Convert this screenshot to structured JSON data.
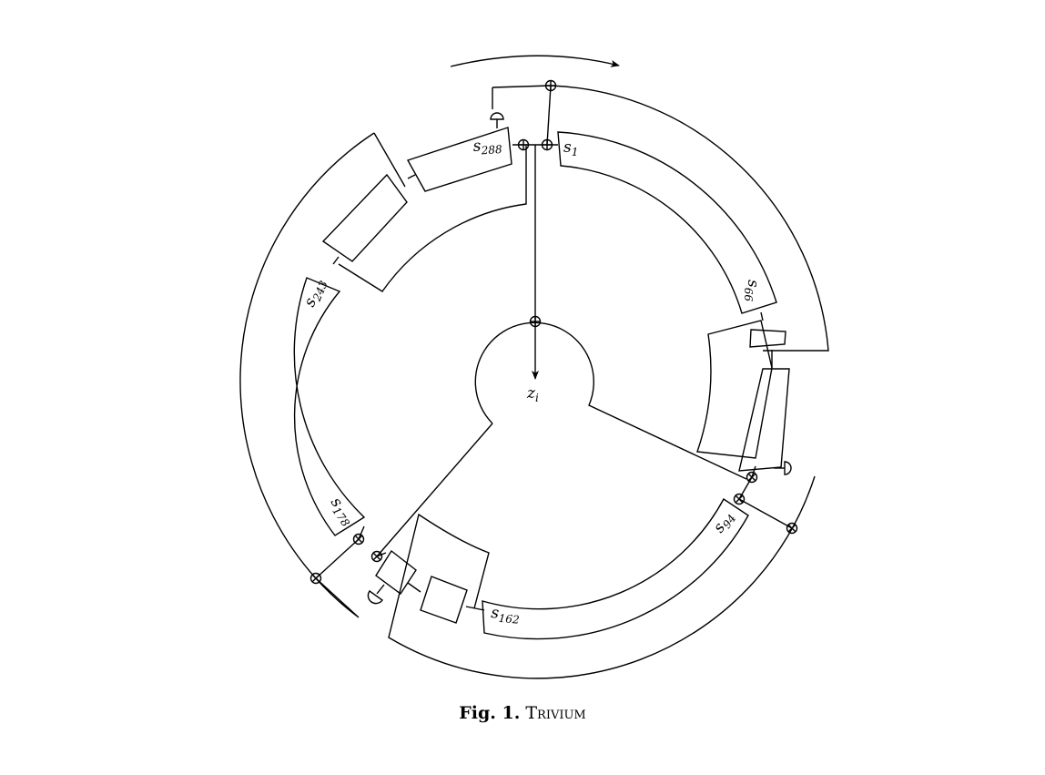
{
  "figure": {
    "caption_number": "Fig. 1.",
    "caption_title": "Trivium"
  },
  "labels": {
    "s1": {
      "base": "s",
      "sub": "1"
    },
    "s66": {
      "base": "s",
      "sub": "66"
    },
    "s94": {
      "base": "s",
      "sub": "94"
    },
    "s162": {
      "base": "s",
      "sub": "162"
    },
    "s178": {
      "base": "s",
      "sub": "178"
    },
    "s243": {
      "base": "s",
      "sub": "243"
    },
    "s288": {
      "base": "s",
      "sub": "288"
    },
    "output": {
      "base": "z",
      "sub": "i"
    }
  }
}
